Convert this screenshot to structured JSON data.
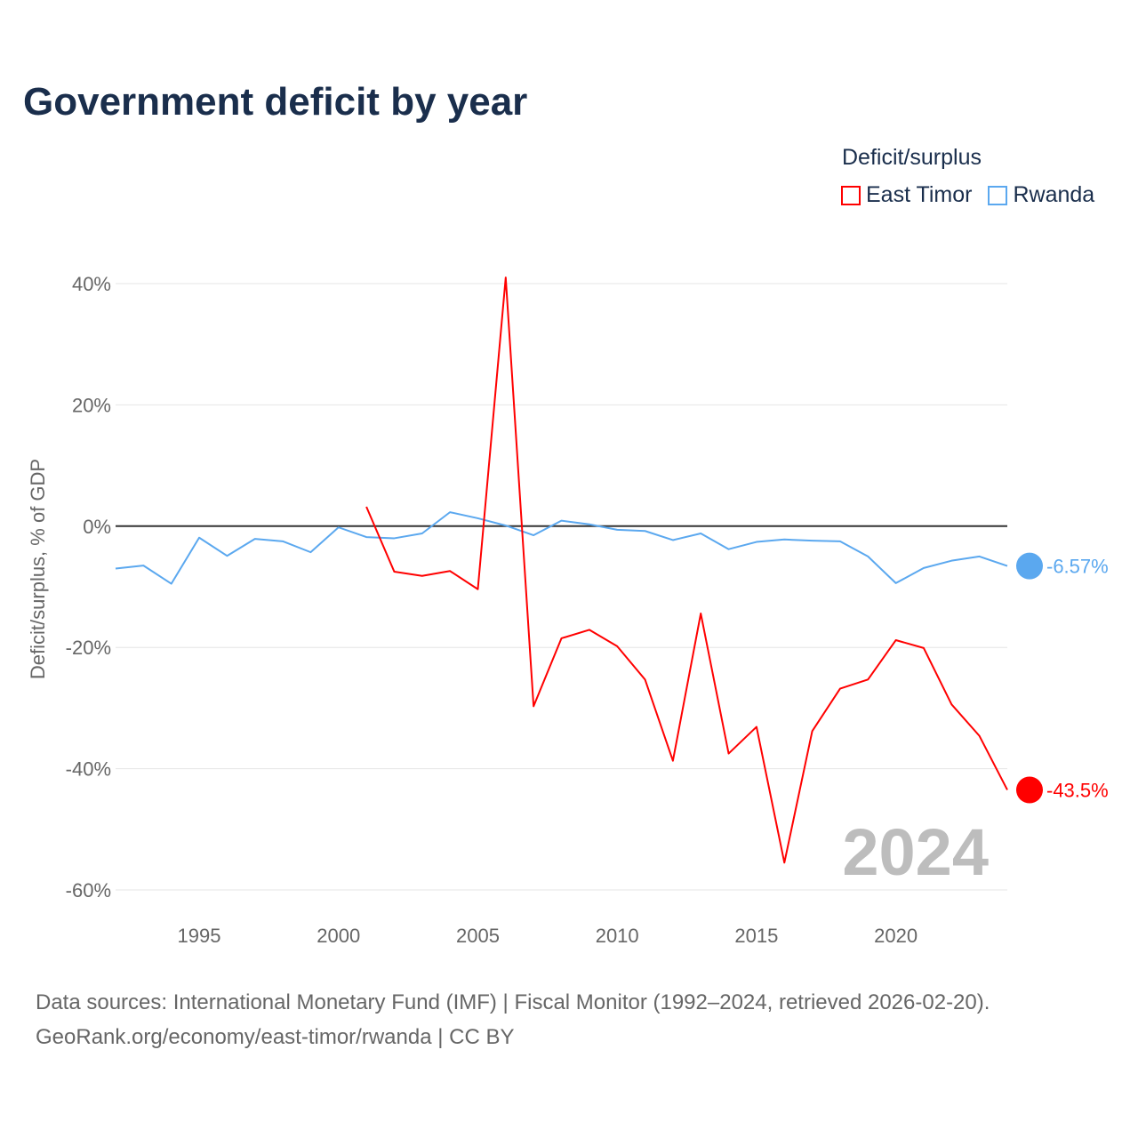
{
  "title": "Government deficit by year",
  "legend": {
    "title": "Deficit/surplus",
    "items": [
      {
        "label": "East Timor",
        "color": "#ff0000"
      },
      {
        "label": "Rwanda",
        "color": "#5ba8ef"
      }
    ]
  },
  "source": {
    "line1": "Data sources: International Monetary Fund (IMF) | Fiscal Monitor (1992–2024, retrieved 2026-02-20).",
    "line2": "GeoRank.org/economy/east-timor/rwanda | CC BY"
  },
  "chart_data": {
    "type": "line",
    "title": "Government deficit by year",
    "ylabel": "Deficit/surplus, % of GDP",
    "xlabel": "",
    "xlim": [
      1992,
      2024
    ],
    "ylim": [
      -60,
      40
    ],
    "xticks": [
      1995,
      2000,
      2005,
      2010,
      2015,
      2020
    ],
    "yticks": [
      {
        "v": 40,
        "label": "40%"
      },
      {
        "v": 20,
        "label": "20%"
      },
      {
        "v": 0,
        "label": "0%"
      },
      {
        "v": -20,
        "label": "-20%"
      },
      {
        "v": -40,
        "label": "-40%"
      },
      {
        "v": -60,
        "label": "-60%"
      }
    ],
    "year_watermark": "2024",
    "series": [
      {
        "name": "East Timor",
        "color": "#ff0000",
        "end_label": "-43.5%",
        "start": 2001,
        "values": [
          3.2,
          -7.5,
          -8.2,
          -7.4,
          -10.4,
          41.0,
          -29.7,
          -18.5,
          -17.1,
          -19.8,
          -25.3,
          -38.7,
          -14.4,
          -37.5,
          -33.1,
          -55.5,
          -33.8,
          -26.8,
          -25.3,
          -18.8,
          -20.1,
          -29.4,
          -34.6,
          -43.5
        ]
      },
      {
        "name": "Rwanda",
        "color": "#5ba8ef",
        "end_label": "-6.57%",
        "start": 1992,
        "values": [
          -7.0,
          -6.5,
          -9.5,
          -1.9,
          -4.9,
          -2.1,
          -2.5,
          -4.3,
          -0.2,
          -1.8,
          -2.0,
          -1.2,
          2.3,
          1.3,
          0.1,
          -1.5,
          0.9,
          0.3,
          -0.6,
          -0.8,
          -2.3,
          -1.2,
          -3.8,
          -2.6,
          -2.2,
          -2.4,
          -2.5,
          -5.0,
          -9.4,
          -6.9,
          -5.7,
          -5.0,
          -6.57
        ]
      }
    ]
  }
}
